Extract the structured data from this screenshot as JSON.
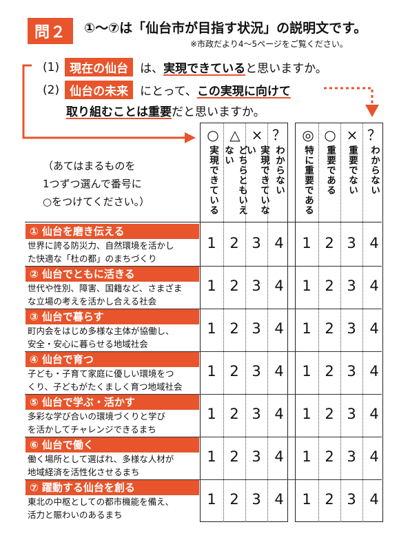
{
  "header": {
    "badge": "問２",
    "title": "①～⑦は「仙台市が目指す状況」の説明文です。",
    "note": "※市政だより4～5ページをご覧ください。"
  },
  "questions": {
    "q1": {
      "num": "(1)",
      "tag": "現在の仙台",
      "text_pre": "は、",
      "text_bold": "実現できている",
      "text_post": "と思いますか。"
    },
    "q2": {
      "num": "(2)",
      "tag": "仙台の未来",
      "text_pre": "にとって、",
      "text_bold": "この実現に向けて"
    },
    "q2_line2": {
      "bold": "取り組むことは重要",
      "post": "だと思いますか。"
    }
  },
  "instruction": [
    "（あてはまるものを",
    "1つずつ選んで番号に",
    "○をつけてください。）"
  ],
  "columns_left": [
    {
      "symbol": "○",
      "label": "実現できている"
    },
    {
      "symbol": "△",
      "label": "どちらともいえない"
    },
    {
      "symbol": "×",
      "label": "実現できていない"
    },
    {
      "symbol": "？",
      "label": "わからない"
    }
  ],
  "columns_right": [
    {
      "symbol": "◎",
      "label": "特に重要である"
    },
    {
      "symbol": "○",
      "label": "重要である"
    },
    {
      "symbol": "×",
      "label": "重要でない"
    },
    {
      "symbol": "？",
      "label": "わからない"
    }
  ],
  "rows": [
    {
      "title": "① 仙台を磨き伝える",
      "desc1": "世界に誇る防災力、自然環境を活かし",
      "desc2": "た快適な「杜の都」のまちづくり"
    },
    {
      "title": "② 仙台でともに活きる",
      "desc1": "世代や性別、障害、国籍など、さまざま",
      "desc2": "な立場の考えを活かし合える社会"
    },
    {
      "title": "③ 仙台で暮らす",
      "desc1": "町内会をはじめ多様な主体が協働し、",
      "desc2": "安全・安心に暮らせる地域社会"
    },
    {
      "title": "④ 仙台で育つ",
      "desc1": "子ども・子育て家庭に優しい環境をつ",
      "desc2": "くり、子どもがたくましく育つ地域社会"
    },
    {
      "title": "⑤ 仙台で学ぶ・活かす",
      "desc1": "多彩な学び合いの環境づくりと学び",
      "desc2": "を活かしてチャレンジできるまち"
    },
    {
      "title": "⑥ 仙台で働く",
      "desc1": "働く場所として選ばれ、多様な人材が",
      "desc2": "地域経済を活性化させるまち"
    },
    {
      "title": "⑦ 躍動する仙台を創る",
      "desc1": "東北の中枢としての都市機能を備え、",
      "desc2": "活力と賑わいのあるまち"
    }
  ],
  "choices": [
    "1",
    "2",
    "3",
    "4"
  ],
  "colors": {
    "accent": "#e8542b"
  }
}
